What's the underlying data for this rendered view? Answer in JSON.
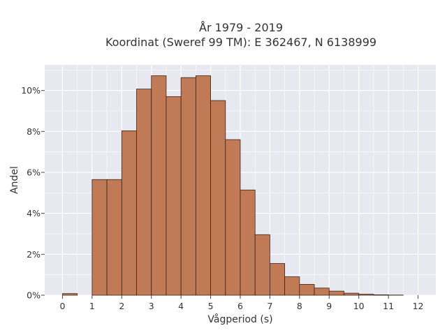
{
  "chart_data": {
    "type": "bar",
    "title_line1": "År 1979 - 2019",
    "title_line2": "Koordinat (Sweref 99 TM): E 362467, N 6138999",
    "xlabel": "Vågperiod (s)",
    "ylabel": "Andel",
    "xlim": [
      -0.6,
      12.6
    ],
    "ylim": [
      0,
      0.1125
    ],
    "x_ticks": [
      0,
      1,
      2,
      3,
      4,
      5,
      6,
      7,
      8,
      9,
      10,
      11,
      12
    ],
    "y_ticks": [
      {
        "value": 0,
        "label": "0%"
      },
      {
        "value": 0.02,
        "label": "2%"
      },
      {
        "value": 0.04,
        "label": "4%"
      },
      {
        "value": 0.06,
        "label": "6%"
      },
      {
        "value": 0.08,
        "label": "8%"
      },
      {
        "value": 0.1,
        "label": "10%"
      }
    ],
    "bin_width": 0.5,
    "bins": [
      {
        "start": 0.0,
        "value": 0.0008
      },
      {
        "start": 1.0,
        "value": 0.0565
      },
      {
        "start": 1.5,
        "value": 0.0565
      },
      {
        "start": 2.0,
        "value": 0.0803
      },
      {
        "start": 2.5,
        "value": 0.1007
      },
      {
        "start": 3.0,
        "value": 0.1072
      },
      {
        "start": 3.5,
        "value": 0.097
      },
      {
        "start": 4.0,
        "value": 0.1063
      },
      {
        "start": 4.5,
        "value": 0.1072
      },
      {
        "start": 5.0,
        "value": 0.0951
      },
      {
        "start": 5.5,
        "value": 0.076
      },
      {
        "start": 6.0,
        "value": 0.0514
      },
      {
        "start": 6.5,
        "value": 0.0296
      },
      {
        "start": 7.0,
        "value": 0.0155
      },
      {
        "start": 7.5,
        "value": 0.009
      },
      {
        "start": 8.0,
        "value": 0.0053
      },
      {
        "start": 8.5,
        "value": 0.0035
      },
      {
        "start": 9.0,
        "value": 0.002
      },
      {
        "start": 9.5,
        "value": 0.001
      },
      {
        "start": 10.0,
        "value": 0.0005
      },
      {
        "start": 10.5,
        "value": 0.0002
      },
      {
        "start": 11.0,
        "value": 0.0001
      }
    ],
    "bar_color": "#c07a55",
    "bar_edge_color": "#3b2418",
    "plot_bg_color": "#e8e8f0",
    "grid": true
  }
}
